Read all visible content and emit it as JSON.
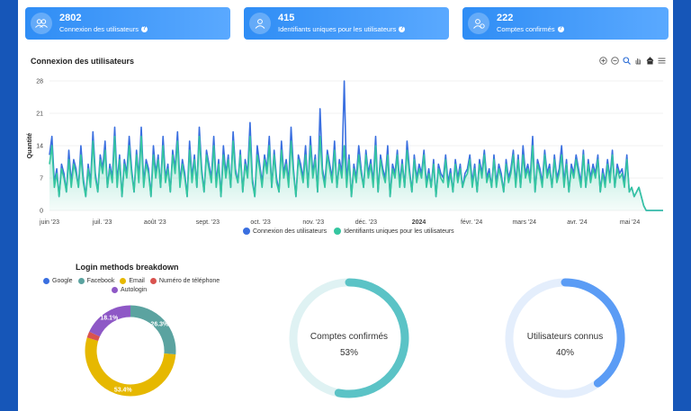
{
  "stats": [
    {
      "value": "2802",
      "label": "Connexion des utilisateurs",
      "icon": "users-icon",
      "help": "?"
    },
    {
      "value": "415",
      "label": "Identifiants uniques pour les utilisateurs",
      "icon": "user-icon",
      "help": "?"
    },
    {
      "value": "222",
      "label": "Comptes confirmés",
      "icon": "user-check-icon",
      "help": "?"
    }
  ],
  "chart_data": [
    {
      "type": "line",
      "title": "Connexion des utilisateurs",
      "ylabel": "Quantité",
      "ylim": [
        0,
        28
      ],
      "yticks": [
        "0",
        "7",
        "14",
        "21",
        "28"
      ],
      "xticks": [
        "juin '23",
        "juil. '23",
        "août '23",
        "sept. '23",
        "oct. '23",
        "nov. '23",
        "déc. '23",
        "2024",
        "févr. '24",
        "mars '24",
        "avr. '24",
        "mai '24"
      ],
      "legend": "bottom",
      "grid": true,
      "series": [
        {
          "name": "Connexion des utilisateurs",
          "color": "#3a6fe0",
          "values": [
            12,
            16,
            6,
            9,
            3,
            10,
            8,
            4,
            13,
            6,
            11,
            9,
            5,
            14,
            7,
            3,
            10,
            6,
            17,
            8,
            4,
            12,
            9,
            15,
            5,
            10,
            7,
            18,
            6,
            12,
            3,
            11,
            8,
            16,
            9,
            4,
            13,
            7,
            18,
            6,
            11,
            9,
            3,
            14,
            8,
            12,
            5,
            16,
            7,
            10,
            4,
            13,
            9,
            17,
            6,
            11,
            8,
            3,
            15,
            7,
            12,
            5,
            18,
            9,
            4,
            13,
            10,
            7,
            16,
            6,
            11,
            3,
            14,
            8,
            12,
            5,
            17,
            9,
            6,
            13,
            4,
            11,
            8,
            19,
            7,
            3,
            14,
            10,
            6,
            12,
            9,
            16,
            5,
            13,
            7,
            4,
            15,
            8,
            11,
            6,
            18,
            9,
            3,
            12,
            10,
            7,
            14,
            5,
            16,
            8,
            12,
            4,
            22,
            9,
            6,
            13,
            10,
            7,
            15,
            5,
            11,
            8,
            28,
            6,
            12,
            3,
            10,
            7,
            14,
            9,
            5,
            13,
            8,
            11,
            6,
            16,
            4,
            12,
            9,
            7,
            14,
            3,
            10,
            8,
            13,
            6,
            11,
            5,
            15,
            9,
            4,
            12,
            7,
            10,
            8,
            13,
            6,
            9,
            5,
            11,
            3,
            10,
            8,
            7,
            12,
            6,
            9,
            4,
            11,
            7,
            10,
            5,
            8,
            9,
            12,
            6,
            10,
            4,
            11,
            8,
            13,
            7,
            9,
            5,
            12,
            6,
            10,
            8,
            4,
            11,
            7,
            9,
            13,
            6,
            12,
            5,
            14,
            8,
            10,
            7,
            16,
            4,
            11,
            9,
            6,
            13,
            8,
            10,
            5,
            12,
            7,
            9,
            14,
            6,
            11,
            4,
            10,
            8,
            12,
            9,
            6,
            13,
            5,
            11,
            7,
            10,
            8,
            12,
            4,
            9,
            6,
            11,
            7,
            13,
            5,
            10,
            8,
            9,
            6,
            12,
            4,
            5,
            3,
            4,
            5,
            3,
            1,
            0,
            0,
            0,
            0,
            0,
            0,
            0,
            0
          ]
        },
        {
          "name": "Identifiants uniques pour les utilisateurs",
          "color": "#35c6a0",
          "values": [
            10,
            14,
            5,
            8,
            3,
            9,
            7,
            4,
            11,
            5,
            10,
            8,
            5,
            12,
            6,
            3,
            9,
            5,
            15,
            7,
            4,
            11,
            8,
            13,
            5,
            9,
            6,
            16,
            5,
            11,
            3,
            10,
            7,
            14,
            8,
            4,
            12,
            6,
            16,
            5,
            10,
            8,
            3,
            12,
            7,
            11,
            5,
            14,
            6,
            9,
            4,
            12,
            8,
            15,
            5,
            10,
            7,
            3,
            13,
            6,
            11,
            5,
            16,
            8,
            4,
            12,
            9,
            6,
            14,
            5,
            10,
            3,
            12,
            7,
            11,
            5,
            15,
            8,
            6,
            12,
            4,
            10,
            7,
            16,
            6,
            3,
            12,
            9,
            5,
            11,
            8,
            14,
            5,
            12,
            6,
            4,
            13,
            7,
            10,
            5,
            15,
            8,
            3,
            11,
            9,
            6,
            12,
            5,
            14,
            7,
            11,
            4,
            16,
            8,
            5,
            12,
            9,
            6,
            13,
            5,
            10,
            7,
            14,
            5,
            11,
            3,
            9,
            6,
            12,
            8,
            5,
            12,
            7,
            10,
            5,
            14,
            4,
            11,
            8,
            6,
            12,
            3,
            9,
            7,
            12,
            5,
            10,
            5,
            13,
            8,
            4,
            11,
            6,
            9,
            7,
            12,
            5,
            8,
            5,
            10,
            3,
            9,
            7,
            6,
            11,
            5,
            8,
            4,
            10,
            6,
            9,
            5,
            7,
            8,
            11,
            5,
            9,
            4,
            10,
            7,
            12,
            6,
            8,
            5,
            11,
            5,
            9,
            7,
            4,
            10,
            6,
            8,
            12,
            5,
            11,
            5,
            12,
            7,
            9,
            6,
            14,
            4,
            10,
            8,
            5,
            12,
            7,
            9,
            5,
            11,
            6,
            8,
            12,
            5,
            10,
            4,
            9,
            7,
            11,
            8,
            5,
            12,
            5,
            10,
            6,
            9,
            7,
            11,
            4,
            8,
            5,
            10,
            6,
            12,
            5,
            9,
            7,
            8,
            5,
            11,
            4,
            5,
            3,
            4,
            5,
            3,
            1,
            0,
            0,
            0,
            0,
            0,
            0,
            0,
            0
          ]
        }
      ]
    },
    {
      "type": "pie",
      "title": "Login methods breakdown",
      "legend": "top",
      "categories": [
        "Google",
        "Facebook",
        "Email",
        "Numéro de téléphone",
        "Autologin"
      ],
      "colors": [
        "#3a6fe0",
        "#5ba3a0",
        "#e6b800",
        "#d9534f",
        "#8e58c6"
      ],
      "values": [
        0,
        26.3,
        53.4,
        2.2,
        18.1
      ],
      "labels": [
        "",
        "26.3%",
        "53.4%",
        "",
        "18.1%"
      ]
    }
  ],
  "gauges": [
    {
      "label": "Comptes confirmés",
      "value_text": "53%",
      "value": 0.53,
      "color": "#5bc3c6",
      "track": "#dff2f3"
    },
    {
      "label": "Utilisateurs connus",
      "value_text": "40%",
      "value": 0.4,
      "color": "#5b9cf5",
      "track": "#e4eefc"
    }
  ]
}
